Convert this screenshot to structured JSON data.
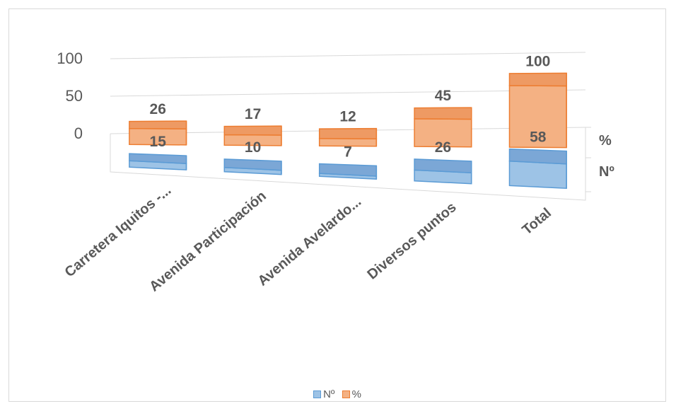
{
  "chart_data": {
    "type": "bar",
    "subtype": "3d-column",
    "categories": [
      "Carretera Iquitos -...",
      "Avenida Participación",
      "Avenida Avelardo...",
      "Diversos puntos",
      "Total"
    ],
    "series": [
      {
        "name": "Nº",
        "values": [
          15,
          10,
          7,
          26,
          58
        ]
      },
      {
        "name": "%",
        "values": [
          26,
          17,
          12,
          45,
          100
        ]
      }
    ],
    "data_labels": {
      "Nº": [
        "15",
        "10",
        "7",
        "26",
        "58"
      ],
      "%": [
        "26",
        "17",
        "12",
        "45",
        "100"
      ]
    },
    "ylim": [
      0,
      100
    ],
    "y_ticks": [
      "0",
      "50",
      "100"
    ],
    "depth_axis_labels": [
      "%",
      "Nº"
    ],
    "legend": {
      "position": "bottom",
      "entries": [
        "Nº",
        "%"
      ]
    },
    "grid": true,
    "colors": {
      "Nº": "#9dc3e6",
      "%": "#f4b183",
      "Nº_edge": "#5b9bd5",
      "%_edge": "#ed7d31"
    }
  }
}
